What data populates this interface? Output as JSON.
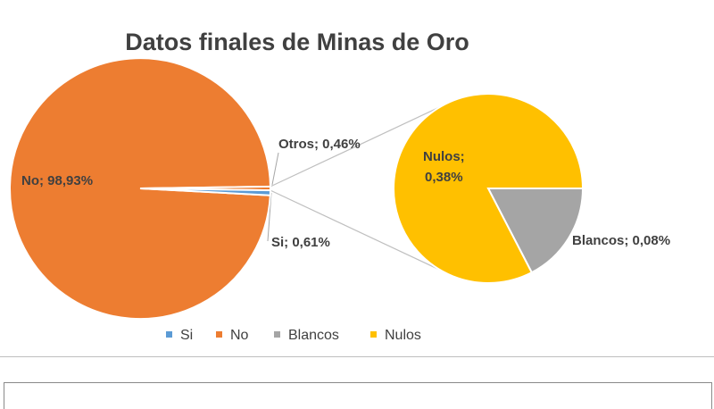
{
  "chart_data": {
    "type": "pie",
    "subtype": "pie-of-pie",
    "title": "Datos finales de Minas de Oro",
    "colors": {
      "Si": "#5b9bd5",
      "No": "#ed7d31",
      "Otros": "#ed7d31",
      "Blancos": "#a5a5a5",
      "Nulos": "#ffc000"
    },
    "main_pie": [
      {
        "name": "No",
        "value": 98.93,
        "label": "No; 98,93%"
      },
      {
        "name": "Otros",
        "value": 0.46,
        "label": "Otros; 0,46%"
      },
      {
        "name": "Si",
        "value": 0.61,
        "label": "Si; 0,61%"
      }
    ],
    "secondary_pie": [
      {
        "name": "Nulos",
        "value": 0.38,
        "label_line1": "Nulos;",
        "label_line2": "0,38%"
      },
      {
        "name": "Blancos",
        "value": 0.08,
        "label": "Blancos; 0,08%"
      }
    ],
    "legend": {
      "position": "bottom",
      "entries": [
        {
          "name": "Si",
          "color": "#5b9bd5"
        },
        {
          "name": "No",
          "color": "#ed7d31"
        },
        {
          "name": "Blancos",
          "color": "#a5a5a5"
        },
        {
          "name": "Nulos",
          "color": "#ffc000"
        }
      ]
    }
  }
}
